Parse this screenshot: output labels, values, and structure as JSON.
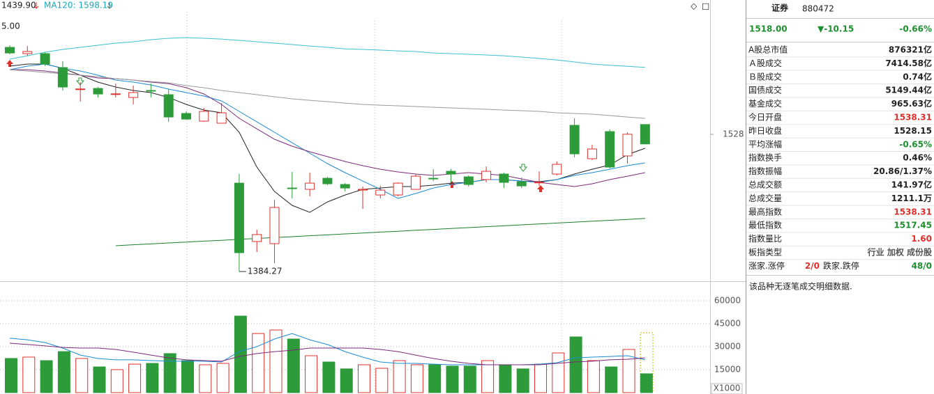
{
  "header": {
    "ma_long": "1439.90",
    "ma120": "MA120: 1598.19",
    "axis_top": "5.00"
  },
  "chart_data": [
    {
      "type": "candlestick",
      "open": [
        1619.2,
        1612.6,
        1612.6,
        1598.0,
        1575.4,
        1576.1,
        1570.3,
        1566.7,
        1574.0,
        1569.6,
        1549.9,
        1541.9,
        1539.7,
        1476.9,
        1415.7,
        1413.5,
        1471.8,
        1470.4,
        1482.0,
        1475.5,
        1469.6,
        1464.5,
        1464.5,
        1470.4,
        1482.0,
        1489.3,
        1483.5,
        1480.6,
        1486.4,
        1478.4,
        1477.7,
        1486.4,
        1537.5,
        1502.5,
        1530.9,
        1505.4,
        1538.31
      ],
      "high": [
        1621.4,
        1620.6,
        1614.1,
        1604.6,
        1582.7,
        1577.6,
        1581.2,
        1579.1,
        1581.2,
        1575.4,
        1552.1,
        1555.7,
        1560.8,
        1486.4,
        1428.1,
        1459.4,
        1488.6,
        1487.9,
        1483.5,
        1476.9,
        1473.3,
        1474.0,
        1477.7,
        1486.4,
        1491.5,
        1491.5,
        1485.0,
        1494.4,
        1488.0,
        1482.8,
        1489.3,
        1499.6,
        1544.8,
        1517.1,
        1533.1,
        1530.2,
        1538.31
      ],
      "low": [
        1611.9,
        1610.4,
        1599.5,
        1574.0,
        1562.3,
        1566.7,
        1566.7,
        1559.4,
        1566.7,
        1541.1,
        1543.3,
        1541.1,
        1539.7,
        1384.27,
        1404.7,
        1393.1,
        1460.9,
        1463.1,
        1474.8,
        1468.2,
        1450.0,
        1460.9,
        1463.1,
        1470.4,
        1479.1,
        1477.7,
        1473.3,
        1477.7,
        1471.8,
        1471.8,
        1474.0,
        1485.0,
        1503.9,
        1501.0,
        1492.3,
        1497.4,
        1517.45
      ],
      "close": [
        1613.3,
        1614.8,
        1601.7,
        1577.6,
        1575.6,
        1570.3,
        1570.5,
        1571.8,
        1573.8,
        1546.2,
        1544.0,
        1552.1,
        1550.6,
        1404.0,
        1423.0,
        1451.4,
        1471.6,
        1476.9,
        1476.2,
        1471.8,
        1470.4,
        1469.6,
        1476.9,
        1484.2,
        1481.8,
        1486.4,
        1475.5,
        1489.3,
        1477.7,
        1474.0,
        1477.9,
        1496.6,
        1507.6,
        1512.7,
        1493.7,
        1528.15,
        1518.0
      ],
      "up_color": "#e0302c",
      "down_color": "#2e9b3a",
      "low_label": "1384.27",
      "lines": [
        {
          "color": "#222222",
          "values": [
            1599.5,
            1601.7,
            1601.7,
            1597.3,
            1590.0,
            1582.7,
            1577.6,
            1574.0,
            1571.8,
            1566.7,
            1559.4,
            1553.5,
            1550.6,
            1530.2,
            1493.7,
            1468.2,
            1453.6,
            1446.3,
            1457.2,
            1464.5,
            1470.4,
            1471.8,
            1473.3,
            1473.3,
            1474.8,
            1476.9,
            1477.7,
            1480.6,
            1480.6,
            1479.1,
            1478.4,
            1480.6,
            1486.4,
            1491.5,
            1495.9,
            1506.8,
            1513.4
          ]
        },
        {
          "color": "#1a8ad4",
          "values": [
            1595.8,
            1599.5,
            1601.7,
            1597.3,
            1594.4,
            1590.0,
            1584.9,
            1582.7,
            1579.8,
            1575.4,
            1571.8,
            1568.1,
            1563.0,
            1552.1,
            1541.1,
            1530.2,
            1519.2,
            1508.3,
            1497.4,
            1487.9,
            1479.1,
            1470.4,
            1460.9,
            1466.0,
            1471.8,
            1475.5,
            1477.7,
            1480.6,
            1480.6,
            1479.1,
            1477.7,
            1480.6,
            1485.0,
            1487.9,
            1491.5,
            1495.2,
            1498.1
          ]
        },
        {
          "color": "#7b2a7b",
          "values": [
            1595.8,
            1595.8,
            1594.4,
            1592.2,
            1590.0,
            1587.1,
            1586.4,
            1584.9,
            1582.7,
            1581.2,
            1576.9,
            1570.3,
            1559.4,
            1544.8,
            1533.8,
            1522.9,
            1515.6,
            1509.8,
            1504.7,
            1499.6,
            1495.2,
            1491.5,
            1488.6,
            1486.4,
            1485.0,
            1486.4,
            1487.9,
            1486.4,
            1485.0,
            1481.3,
            1477.7,
            1475.5,
            1473.3,
            1476.2,
            1480.6,
            1484.2,
            1487.9
          ]
        },
        {
          "color": "#9a9a9a",
          "values": [
            1595.8,
            1594.4,
            1592.9,
            1591.5,
            1590.0,
            1588.5,
            1586.4,
            1584.9,
            1583.4,
            1582.0,
            1579.1,
            1576.9,
            1574.0,
            1571.8,
            1569.6,
            1567.4,
            1565.2,
            1563.7,
            1562.3,
            1560.8,
            1559.4,
            1558.6,
            1557.9,
            1557.2,
            1556.4,
            1555.7,
            1555.0,
            1554.3,
            1553.5,
            1552.8,
            1552.1,
            1550.6,
            1549.9,
            1549.2,
            1547.7,
            1546.2,
            1544.8
          ]
        },
        {
          "color": "#3cc0d0",
          "values": [
            1606.8,
            1610.4,
            1614.1,
            1617.0,
            1619.2,
            1621.4,
            1623.6,
            1625.0,
            1627.2,
            1628.7,
            1629.4,
            1628.7,
            1627.9,
            1626.5,
            1625.0,
            1623.6,
            1622.1,
            1620.6,
            1619.2,
            1617.7,
            1617.0,
            1616.3,
            1615.5,
            1614.8,
            1613.3,
            1612.6,
            1611.9,
            1611.2,
            1610.4,
            1609.0,
            1607.5,
            1606.0,
            1603.9,
            1601.7,
            1600.4,
            1599.3,
            1598.19
          ]
        },
        {
          "color": "#1a7f2a",
          "values": [
            null,
            null,
            null,
            null,
            null,
            null,
            1411.3,
            1412.3,
            1413.2,
            1414.2,
            1415.1,
            1416.1,
            1417.0,
            1418.0,
            1418.9,
            1419.9,
            1420.8,
            1421.8,
            1422.7,
            1423.7,
            1424.6,
            1425.6,
            1426.5,
            1427.5,
            1428.4,
            1429.4,
            1430.3,
            1431.3,
            1432.2,
            1433.2,
            1434.1,
            1435.1,
            1436.0,
            1437.0,
            1437.9,
            1438.9,
            1439.9
          ]
        }
      ],
      "ylim": [
        1374.1,
        1668.8
      ],
      "yticks": [
        1528
      ]
    },
    {
      "type": "bar",
      "values": [
        22300,
        23200,
        20900,
        26800,
        22300,
        16800,
        15000,
        18600,
        19100,
        25500,
        20900,
        18200,
        19100,
        50000,
        38600,
        40900,
        35000,
        24100,
        20000,
        15500,
        18200,
        15900,
        20900,
        18200,
        18200,
        17300,
        17300,
        20900,
        18200,
        15500,
        18600,
        25900,
        36400,
        20900,
        16800,
        28200,
        12300
      ],
      "lines": [
        {
          "color": "#1a8ad4",
          "values": [
            35500,
            34500,
            32700,
            29100,
            24500,
            22300,
            21400,
            21400,
            20900,
            20500,
            20500,
            20500,
            20000,
            26800,
            30000,
            35000,
            38600,
            34500,
            31400,
            26800,
            23200,
            20000,
            19100,
            19100,
            18600,
            18200,
            18200,
            18200,
            18200,
            18200,
            18600,
            19500,
            22700,
            23200,
            23600,
            24100,
            21400
          ]
        },
        {
          "color": "#7b2a7b",
          "values": [
            32300,
            31400,
            30500,
            29500,
            29100,
            29100,
            28200,
            26400,
            24500,
            22700,
            21400,
            20900,
            20500,
            23600,
            25500,
            26800,
            27700,
            29100,
            29100,
            29100,
            29100,
            28200,
            26800,
            24500,
            22300,
            20500,
            19100,
            18200,
            18200,
            18200,
            18200,
            19100,
            20000,
            20500,
            21400,
            21800,
            22700
          ]
        }
      ],
      "ylim": [
        0,
        72300
      ],
      "yticks": [
        15000,
        30000,
        45000,
        60000
      ],
      "grid": true,
      "unit_label": "X1000"
    }
  ],
  "panel": {
    "title": "证券",
    "code": "880472",
    "price": "1518.00",
    "change": "▼-10.15",
    "change_pct": "-0.66%",
    "color": "#1e8f2e",
    "rows": [
      {
        "label": "A股总市值",
        "value": "876321亿"
      },
      {
        "label": "Ａ股成交",
        "value": "7414.58亿"
      },
      {
        "label": "Ｂ股成交",
        "value": "0.74亿"
      },
      {
        "label": "国债成交",
        "value": "5149.44亿"
      },
      {
        "label": "基金成交",
        "value": "965.63亿"
      },
      {
        "label": "今日开盘",
        "value": "1538.31",
        "color": "#e0302c"
      },
      {
        "label": "昨日收盘",
        "value": "1528.15"
      },
      {
        "label": "平均涨幅",
        "value": "-0.65%",
        "color": "#1e8f2e"
      },
      {
        "label": "指数换手",
        "value": "0.46%"
      },
      {
        "label": "指数振幅",
        "value": "20.86/1.37%"
      },
      {
        "label": "总成交额",
        "value": "141.97亿"
      },
      {
        "label": "总成交量",
        "value": "1211.1万"
      },
      {
        "label": "最高指数",
        "value": "1538.31",
        "color": "#e0302c"
      },
      {
        "label": "最低指数",
        "value": "1517.45",
        "color": "#1e8f2e"
      },
      {
        "label": "指数量比",
        "value": "1.60",
        "color": "#e0302c"
      },
      {
        "label": "板指类型",
        "value": "行业 加权 成份股",
        "color": "#555555"
      }
    ],
    "breadth": {
      "up_label": "涨家.涨停",
      "up": "2/0",
      "up_color": "#e0302c",
      "down_label": "跌家.跌停",
      "down": "48/0",
      "down_color": "#1e8f2e"
    },
    "note": "该品种无逐笔成交明细数据."
  }
}
